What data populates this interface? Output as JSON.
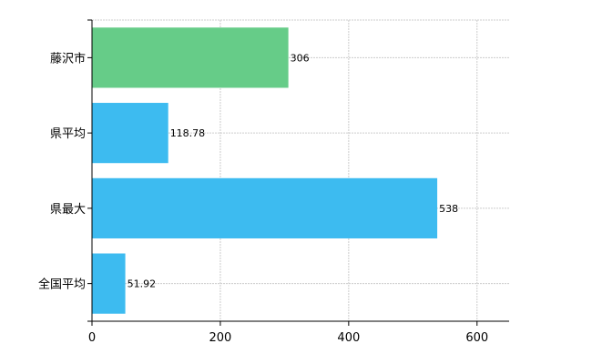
{
  "chart_data": {
    "type": "bar",
    "orientation": "horizontal",
    "categories": [
      "藤沢市",
      "県平均",
      "県最大",
      "全国平均"
    ],
    "values": [
      306,
      118.78,
      538,
      51.92
    ],
    "data_labels": [
      "306",
      "118.78",
      "538",
      "51.92"
    ],
    "bar_colors": [
      "#66cc88",
      "#3dbbf0",
      "#3dbbf0",
      "#3dbbf0"
    ],
    "xlim": [
      0,
      650
    ],
    "x_ticks": [
      0,
      200,
      400,
      600
    ],
    "x_tick_labels": [
      "0",
      "200",
      "400",
      "600"
    ],
    "grid": true,
    "title": "",
    "xlabel": "",
    "ylabel": ""
  }
}
